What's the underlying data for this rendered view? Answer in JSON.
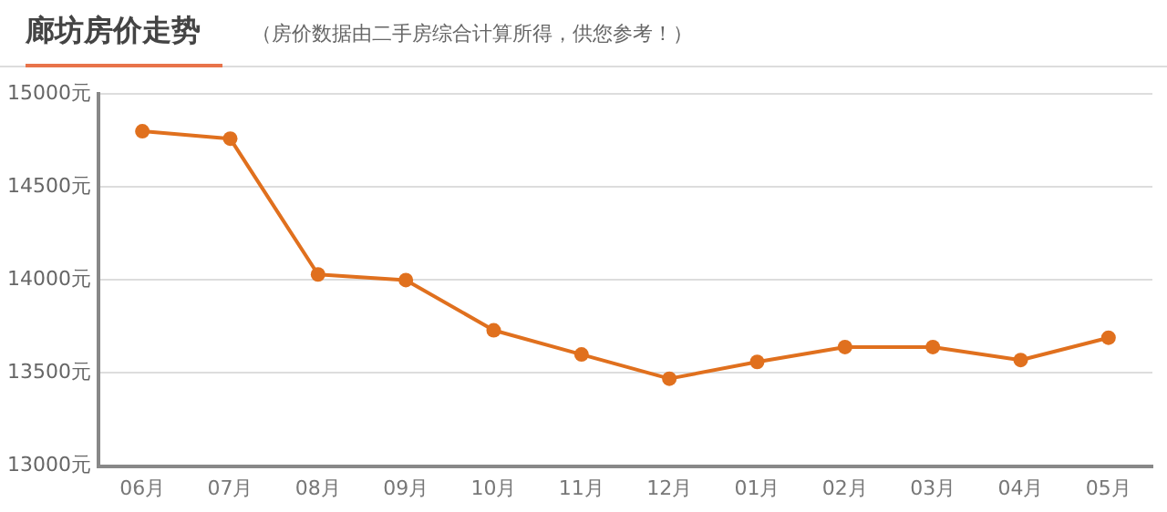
{
  "chart_data": {
    "type": "line",
    "title": "廊坊房价走势",
    "subtitle": "（房价数据由二手房综合计算所得，供您参考！）",
    "categories": [
      "06月",
      "07月",
      "08月",
      "09月",
      "10月",
      "11月",
      "12月",
      "01月",
      "02月",
      "03月",
      "04月",
      "05月"
    ],
    "series": [
      {
        "color": "#e0701e",
        "values": [
          14800,
          14760,
          14030,
          14000,
          13730,
          13600,
          13470,
          13560,
          13640,
          13640,
          13570,
          13690
        ]
      }
    ],
    "ylim": [
      13000,
      15000
    ],
    "yticks": [
      {
        "value": 13000,
        "label": "13000元"
      },
      {
        "value": 13500,
        "label": "13500元"
      },
      {
        "value": 14000,
        "label": "14000元"
      },
      {
        "value": 14500,
        "label": "14500元"
      },
      {
        "value": 15000,
        "label": "15000元"
      }
    ],
    "grid": "y",
    "marker": "circle",
    "line_style": "solid",
    "legend": false
  }
}
